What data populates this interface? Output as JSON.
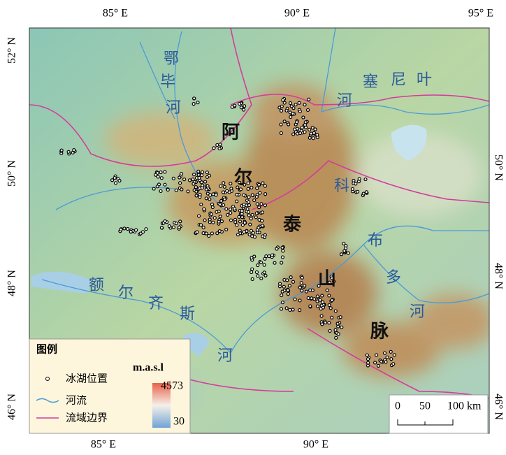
{
  "frame": {
    "top_labels": [
      "85° E",
      "90° E",
      "95° E"
    ],
    "bottom_labels": [
      "85° E",
      "90° E"
    ],
    "left_labels": [
      "52° N",
      "50° N",
      "48° N",
      "46° N"
    ],
    "right_labels": [
      "50° N",
      "48° N",
      "46° N"
    ]
  },
  "map_labels": {
    "mountains": [
      "阿",
      "尔",
      "泰",
      "山",
      "脉"
    ],
    "ob_river": [
      "鄂",
      "毕",
      "河"
    ],
    "yenisei_river": [
      "塞",
      "尼",
      "叶",
      "河"
    ],
    "kobdo_river": [
      "科",
      "布",
      "多",
      "河"
    ],
    "irtysh_river": [
      "额",
      "尔",
      "齐",
      "斯",
      "河"
    ]
  },
  "legend": {
    "title": "图例",
    "items": [
      "冰湖位置",
      "河流",
      "流域边界"
    ],
    "elevation_title": "m.a.s.l",
    "elevation_max": "4573",
    "elevation_min": "30"
  },
  "scale_bar": {
    "ticks": [
      "0",
      "50",
      "100 km"
    ]
  }
}
